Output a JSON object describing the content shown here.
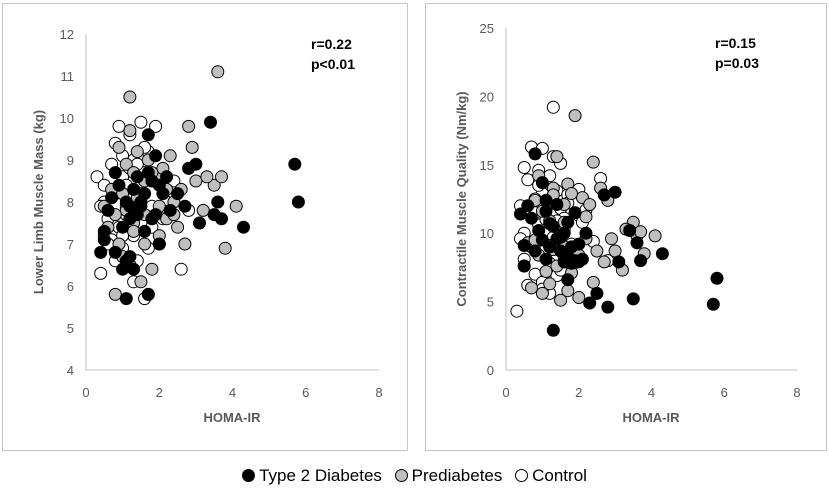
{
  "chart_data": [
    {
      "type": "scatter",
      "title": "",
      "xlabel": "HOMA-IR",
      "ylabel": "Lower Limb Muscle Mass (kg)",
      "xlim": [
        0,
        8
      ],
      "ylim": [
        4,
        12
      ],
      "xticks": [
        0,
        2,
        4,
        6,
        8
      ],
      "yticks": [
        4,
        5,
        6,
        7,
        8,
        9,
        10,
        11,
        12
      ],
      "annotation": [
        "r=0.22",
        "p<0.01"
      ],
      "grid": false,
      "series": [
        {
          "name": "Control",
          "x": [
            0.3,
            0.4,
            0.5,
            0.5,
            0.6,
            0.7,
            0.7,
            0.8,
            0.8,
            0.9,
            0.9,
            1.0,
            1.0,
            1.0,
            1.1,
            1.1,
            1.2,
            1.2,
            1.3,
            1.3,
            1.4,
            1.4,
            1.5,
            1.5,
            1.6,
            1.6,
            1.7,
            1.8,
            1.9,
            2.0,
            0.6,
            0.9,
            1.1,
            1.3,
            1.5,
            1.7,
            2.1,
            2.4,
            2.6,
            2.8,
            0.4,
            0.8,
            1.2,
            1.6,
            2.0,
            0.5,
            1.0,
            1.4,
            1.8,
            2.2
          ],
          "y": [
            8.6,
            6.3,
            7.2,
            8.0,
            7.6,
            8.9,
            7.1,
            9.4,
            8.2,
            9.8,
            7.4,
            8.6,
            9.1,
            6.9,
            8.4,
            7.7,
            9.6,
            8.8,
            7.2,
            9.0,
            8.0,
            6.6,
            9.9,
            7.5,
            8.7,
            5.7,
            9.2,
            7.9,
            9.8,
            8.5,
            7.0,
            8.3,
            7.9,
            6.1,
            8.1,
            6.9,
            7.6,
            8.5,
            6.4,
            7.8,
            7.9,
            6.6,
            7.5,
            9.3,
            7.0,
            8.4,
            7.2,
            8.9,
            7.4,
            8.0
          ]
        },
        {
          "name": "Prediabetes",
          "x": [
            0.5,
            0.6,
            0.7,
            0.8,
            0.9,
            0.9,
            1.0,
            1.1,
            1.1,
            1.2,
            1.2,
            1.3,
            1.3,
            1.4,
            1.5,
            1.5,
            1.6,
            1.7,
            1.7,
            1.8,
            1.9,
            2.0,
            2.1,
            2.2,
            2.3,
            2.4,
            2.5,
            2.6,
            2.8,
            2.9,
            3.0,
            3.2,
            3.5,
            3.6,
            3.7,
            3.8,
            4.1,
            1.2,
            1.4,
            1.6,
            1.8,
            2.0,
            2.2,
            0.8,
            1.0,
            2.7,
            1.3,
            1.6,
            2.4,
            3.3
          ],
          "y": [
            7.9,
            7.4,
            8.3,
            5.8,
            9.3,
            7.0,
            6.7,
            8.9,
            7.8,
            10.5,
            6.5,
            8.7,
            7.5,
            9.2,
            6.1,
            8.2,
            7.7,
            5.8,
            9.0,
            6.4,
            8.6,
            7.2,
            8.8,
            7.6,
            9.1,
            8.0,
            7.4,
            8.3,
            9.8,
            9.3,
            8.5,
            7.8,
            8.4,
            11.1,
            8.6,
            6.9,
            7.9,
            9.7,
            8.1,
            7.0,
            8.7,
            7.9,
            8.3,
            7.7,
            8.2,
            7.0,
            7.3,
            8.5,
            7.7,
            8.6
          ]
        },
        {
          "name": "Type 2 Diabetes",
          "x": [
            0.4,
            0.5,
            0.5,
            0.6,
            0.7,
            0.8,
            0.8,
            0.9,
            1.0,
            1.0,
            1.1,
            1.1,
            1.2,
            1.2,
            1.3,
            1.3,
            1.4,
            1.4,
            1.5,
            1.5,
            1.6,
            1.6,
            1.7,
            1.7,
            1.8,
            1.8,
            1.9,
            1.9,
            2.0,
            2.0,
            2.1,
            2.2,
            2.3,
            2.5,
            2.7,
            2.8,
            3.0,
            3.1,
            3.4,
            3.5,
            3.6,
            3.7,
            4.3,
            5.7,
            5.8,
            1.1,
            1.7,
            1.2
          ],
          "y": [
            6.8,
            7.3,
            7.1,
            7.8,
            8.1,
            6.8,
            8.7,
            8.4,
            7.4,
            6.4,
            8.0,
            6.6,
            7.6,
            6.7,
            8.3,
            6.4,
            8.6,
            7.7,
            8.0,
            7.9,
            8.2,
            7.3,
            9.6,
            5.8,
            8.5,
            7.6,
            7.7,
            9.1,
            7.0,
            8.4,
            8.2,
            8.6,
            7.8,
            8.2,
            7.9,
            8.8,
            8.9,
            7.5,
            9.9,
            7.7,
            8.0,
            7.6,
            7.4,
            8.9,
            8.0,
            5.7,
            8.7,
            7.9
          ]
        }
      ]
    },
    {
      "type": "scatter",
      "title": "",
      "xlabel": "HOMA-IR",
      "ylabel": "Contractile Muscle Quality (Nm/kg)",
      "xlim": [
        0,
        8
      ],
      "ylim": [
        0,
        25
      ],
      "xticks": [
        0,
        2,
        4,
        6,
        8
      ],
      "yticks": [
        0,
        5,
        10,
        15,
        20,
        25
      ],
      "annotation": [
        "r=0.15",
        "p=0.03"
      ],
      "grid": false,
      "series": [
        {
          "name": "Control",
          "x": [
            0.3,
            0.4,
            0.5,
            0.5,
            0.6,
            0.7,
            0.7,
            0.8,
            0.8,
            0.9,
            0.9,
            1.0,
            1.0,
            1.0,
            1.1,
            1.1,
            1.2,
            1.2,
            1.3,
            1.3,
            1.4,
            1.4,
            1.5,
            1.5,
            1.6,
            1.6,
            1.7,
            1.8,
            1.9,
            2.0,
            0.6,
            0.9,
            1.1,
            1.3,
            1.5,
            1.7,
            2.1,
            2.4,
            2.6,
            2.8,
            0.4,
            0.8,
            1.2,
            1.6,
            2.0,
            0.5,
            1.0,
            1.4,
            1.8,
            2.2
          ],
          "y": [
            4.3,
            12.0,
            8.1,
            10.0,
            13.9,
            9.0,
            16.3,
            11.5,
            7.0,
            14.6,
            10.6,
            6.4,
            12.9,
            16.2,
            8.6,
            11.0,
            14.2,
            5.6,
            19.2,
            9.7,
            13.1,
            6.9,
            11.8,
            15.1,
            8.3,
            10.3,
            12.8,
            7.6,
            9.0,
            11.3,
            6.2,
            13.5,
            8.9,
            15.6,
            7.3,
            12.2,
            10.8,
            9.4,
            14.0,
            8.0,
            9.6,
            12.5,
            7.8,
            11.1,
            13.2,
            14.8,
            5.9,
            10.9,
            9.2,
            11.7
          ]
        },
        {
          "name": "Prediabetes",
          "x": [
            0.5,
            0.6,
            0.7,
            0.8,
            0.9,
            0.9,
            1.0,
            1.1,
            1.1,
            1.2,
            1.2,
            1.3,
            1.3,
            1.4,
            1.5,
            1.5,
            1.6,
            1.7,
            1.7,
            1.8,
            1.9,
            2.0,
            2.1,
            2.2,
            2.3,
            2.4,
            2.5,
            2.6,
            2.8,
            2.9,
            3.0,
            3.2,
            3.5,
            3.6,
            3.7,
            3.8,
            4.1,
            1.2,
            1.4,
            1.6,
            1.8,
            2.0,
            2.2,
            0.8,
            1.0,
            2.7,
            1.3,
            1.6,
            2.4,
            3.3
          ],
          "y": [
            7.6,
            9.3,
            6.0,
            12.4,
            8.4,
            14.2,
            5.6,
            11.8,
            7.2,
            10.9,
            6.3,
            13.3,
            8.8,
            15.6,
            5.1,
            10.1,
            12.1,
            5.8,
            13.6,
            7.1,
            18.6,
            8.4,
            12.6,
            9.6,
            12.1,
            15.2,
            8.7,
            13.3,
            12.4,
            9.6,
            8.7,
            7.3,
            10.8,
            9.8,
            10.1,
            8.5,
            9.8,
            9.1,
            7.6,
            10.8,
            12.9,
            5.3,
            11.2,
            9.5,
            11.6,
            7.9,
            12.8,
            9.0,
            6.4,
            10.3
          ]
        },
        {
          "name": "Type 2 Diabetes",
          "x": [
            0.4,
            0.5,
            0.5,
            0.6,
            0.7,
            0.8,
            0.8,
            0.9,
            1.0,
            1.0,
            1.1,
            1.1,
            1.2,
            1.2,
            1.3,
            1.3,
            1.4,
            1.4,
            1.5,
            1.5,
            1.6,
            1.6,
            1.7,
            1.7,
            1.8,
            1.8,
            1.9,
            1.9,
            2.0,
            2.0,
            2.1,
            2.2,
            2.3,
            2.5,
            2.7,
            2.8,
            3.0,
            3.1,
            3.4,
            3.5,
            3.6,
            3.7,
            4.3,
            5.7,
            5.8,
            1.1,
            1.7,
            1.2
          ],
          "y": [
            11.4,
            9.1,
            7.6,
            12.0,
            11.1,
            15.8,
            8.7,
            10.2,
            13.7,
            9.5,
            11.6,
            8.1,
            10.7,
            9.0,
            2.9,
            10.5,
            9.6,
            12.1,
            9.7,
            8.7,
            10.0,
            7.9,
            6.6,
            10.8,
            9.0,
            7.8,
            8.0,
            11.5,
            7.9,
            9.2,
            8.1,
            10.0,
            4.9,
            5.6,
            12.8,
            4.6,
            13.0,
            7.9,
            10.2,
            5.2,
            9.3,
            8.0,
            8.5,
            4.8,
            6.7,
            12.4,
            8.3,
            9.0
          ]
        }
      ]
    }
  ],
  "legend": {
    "items": [
      {
        "label": "Type 2 Diabetes",
        "color": "#000000"
      },
      {
        "label": "Prediabetes",
        "color": "#bfbfbf"
      },
      {
        "label": "Control",
        "color": "#ffffff"
      }
    ]
  },
  "colors": {
    "type2": "#000000",
    "prediabetes": "#bfbfbf",
    "control": "#ffffff",
    "axis": "#595959"
  }
}
